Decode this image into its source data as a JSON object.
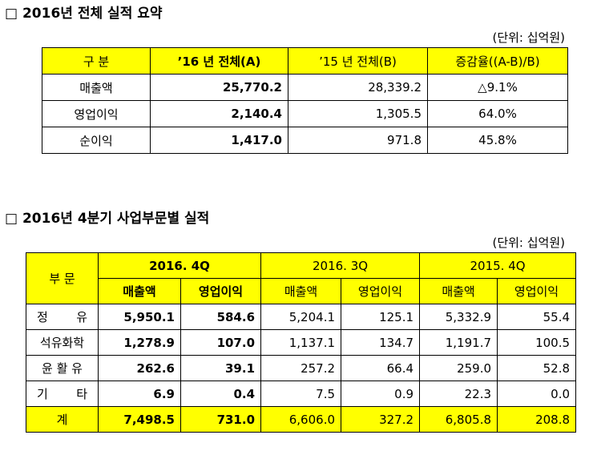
{
  "section1": {
    "title": "□ 2016년 전체 실적 요약",
    "unit": "(단위: 십억원)",
    "headers": [
      "구 분",
      "’16 년 전체(A)",
      "’15 년 전체(B)",
      "증감율((A-B)/B)"
    ],
    "rows": [
      {
        "label": "매출액",
        "a": "25,770.2",
        "b": "28,339.2",
        "rate": "△9.1%"
      },
      {
        "label": "영업이익",
        "a": "2,140.4",
        "b": "1,305.5",
        "rate": "64.0%"
      },
      {
        "label": "순이익",
        "a": "1,417.0",
        "b": "971.8",
        "rate": "45.8%"
      }
    ]
  },
  "section2": {
    "title": "□ 2016년 4분기 사업부문별 실적",
    "unit": "(단위: 십억원)",
    "header_division": "부 문",
    "periods": [
      "2016. 4Q",
      "2016. 3Q",
      "2015. 4Q"
    ],
    "sub_headers": [
      "매출액",
      "영업이익",
      "매출액",
      "영업이익",
      "매출액",
      "영업이익"
    ],
    "rows": [
      {
        "label_left": "정",
        "label_right": "유",
        "label": "",
        "values": [
          "5,950.1",
          "584.6",
          "5,204.1",
          "125.1",
          "5,332.9",
          "55.4"
        ]
      },
      {
        "label_left": "",
        "label_right": "",
        "label": "석유화학",
        "values": [
          "1,278.9",
          "107.0",
          "1,137.1",
          "134.7",
          "1,191.7",
          "100.5"
        ]
      },
      {
        "label_left": "",
        "label_right": "",
        "label": "윤 활 유",
        "values": [
          "262.6",
          "39.1",
          "257.2",
          "66.4",
          "259.0",
          "52.8"
        ]
      },
      {
        "label_left": "기",
        "label_right": "타",
        "label": "",
        "values": [
          "6.9",
          "0.4",
          "7.5",
          "0.9",
          "22.3",
          "0.0"
        ]
      }
    ],
    "total": {
      "label": "계",
      "values": [
        "7,498.5",
        "731.0",
        "6,606.0",
        "327.2",
        "6,805.8",
        "208.8"
      ]
    }
  }
}
